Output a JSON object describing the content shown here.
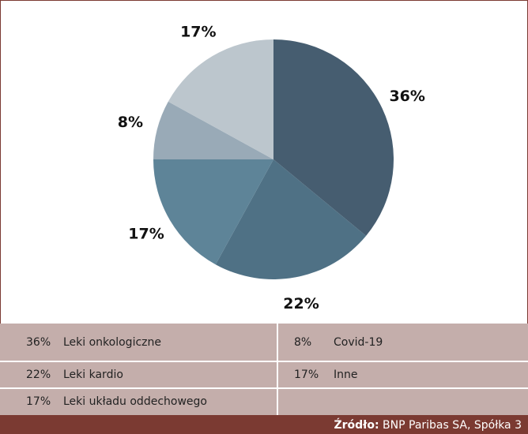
{
  "chart_data": {
    "type": "pie",
    "categories": [
      "Leki onkologiczne",
      "Leki kardio",
      "Leki układu oddechowego",
      "Covid-19",
      "Inne"
    ],
    "values": [
      36,
      22,
      17,
      8,
      17
    ],
    "value_labels": [
      "36%",
      "22%",
      "17%",
      "8%",
      "17%"
    ],
    "colors": [
      "#465d70",
      "#4f7185",
      "#5e8498",
      "#99aab7",
      "#bcc6cd"
    ],
    "source": {
      "label": "Źródło:",
      "text": "BNP Paribas SA, Spółka 3"
    }
  }
}
